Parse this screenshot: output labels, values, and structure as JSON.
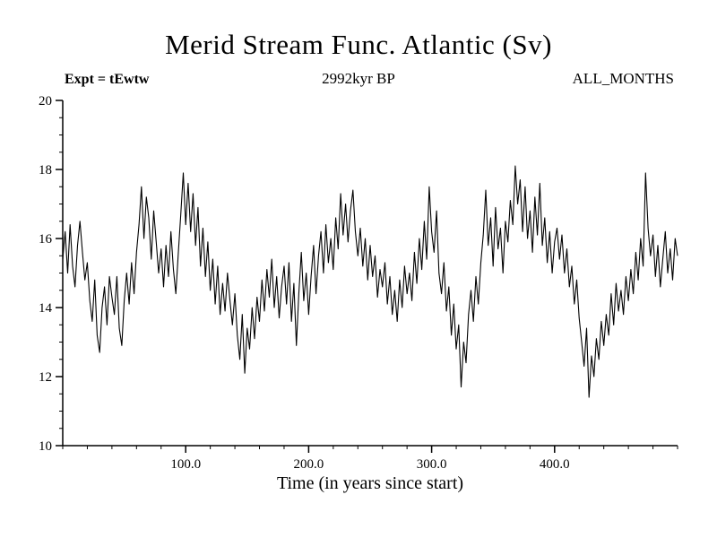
{
  "header": {
    "title": "Merid Stream Func. Atlantic (Sv)",
    "subtitle_left": "Expt = tEwtw",
    "subtitle_center": "2992kyr BP",
    "subtitle_right": "ALL_MONTHS"
  },
  "chart_data": {
    "type": "line",
    "title": "Merid Stream Func. Atlantic (Sv)",
    "xlabel": "Time (in years since start)",
    "ylabel": "",
    "xlim": [
      0,
      500
    ],
    "ylim": [
      10,
      20
    ],
    "grid": false,
    "legend": "none",
    "line_color": "#000000",
    "x_major_ticks": [
      100,
      200,
      300,
      400
    ],
    "x_tick_labels": [
      "100.0",
      "200.0",
      "300.0",
      "400.0"
    ],
    "x_minor_step": 20,
    "y_major_ticks": [
      10,
      12,
      14,
      16,
      18,
      20
    ],
    "y_tick_labels": [
      "10",
      "12",
      "14",
      "16",
      "18",
      "20"
    ],
    "y_minor_step": 0.5,
    "x_start": 0,
    "x_step": 2,
    "series": [
      {
        "name": "Merid Stream Func. Atlantic (Sv) ALL_MONTHS",
        "color": "#000000",
        "values": [
          15.4,
          16.2,
          15.0,
          16.4,
          15.2,
          14.6,
          15.8,
          16.5,
          15.6,
          14.8,
          15.3,
          14.2,
          13.6,
          14.8,
          13.2,
          12.7,
          14.0,
          14.6,
          13.5,
          14.9,
          14.3,
          13.8,
          14.9,
          13.4,
          12.9,
          14.2,
          15.0,
          14.1,
          15.3,
          14.4,
          15.6,
          16.4,
          17.5,
          16.0,
          17.2,
          16.6,
          15.4,
          16.8,
          15.9,
          15.0,
          15.7,
          14.6,
          15.8,
          14.9,
          16.2,
          15.1,
          14.4,
          15.6,
          16.7,
          17.9,
          16.4,
          17.6,
          16.2,
          17.3,
          15.8,
          16.9,
          15.2,
          16.3,
          14.9,
          15.9,
          14.5,
          15.4,
          14.1,
          15.2,
          13.8,
          14.7,
          13.9,
          15.0,
          14.2,
          13.5,
          14.4,
          13.2,
          12.5,
          13.8,
          12.1,
          13.4,
          12.8,
          14.0,
          13.1,
          14.3,
          13.6,
          14.8,
          13.9,
          15.1,
          14.3,
          15.4,
          14.0,
          14.9,
          13.7,
          14.6,
          15.2,
          14.1,
          15.3,
          13.6,
          14.7,
          12.9,
          14.4,
          15.6,
          14.2,
          15.0,
          13.8,
          14.9,
          15.8,
          14.4,
          15.5,
          16.2,
          15.0,
          16.4,
          15.3,
          16.0,
          15.1,
          16.6,
          15.7,
          17.3,
          16.1,
          17.0,
          15.9,
          16.8,
          17.4,
          16.2,
          15.5,
          16.3,
          15.2,
          16.0,
          14.8,
          15.8,
          14.9,
          15.5,
          14.3,
          15.1,
          14.6,
          15.3,
          14.1,
          14.9,
          13.8,
          14.5,
          13.6,
          14.8,
          14.0,
          15.2,
          14.4,
          15.0,
          14.2,
          15.6,
          14.7,
          16.0,
          15.1,
          16.5,
          15.4,
          17.5,
          16.2,
          15.6,
          16.8,
          15.0,
          14.4,
          15.3,
          13.9,
          14.6,
          13.2,
          14.1,
          12.8,
          13.5,
          11.7,
          13.0,
          12.4,
          13.8,
          14.5,
          13.6,
          14.9,
          14.1,
          15.3,
          16.1,
          17.4,
          15.8,
          16.6,
          15.2,
          16.9,
          15.7,
          16.3,
          15.0,
          16.5,
          15.9,
          17.1,
          16.4,
          18.1,
          17.0,
          17.7,
          16.2,
          17.5,
          16.0,
          16.8,
          15.6,
          17.2,
          16.1,
          17.6,
          15.8,
          16.6,
          15.3,
          16.2,
          15.0,
          15.9,
          16.3,
          15.4,
          16.1,
          15.0,
          15.7,
          14.6,
          15.2,
          14.1,
          14.8,
          13.7,
          13.0,
          12.3,
          13.4,
          11.4,
          12.6,
          12.0,
          13.1,
          12.5,
          13.6,
          12.9,
          13.8,
          13.2,
          14.4,
          13.5,
          14.7,
          13.9,
          14.5,
          13.8,
          14.9,
          14.2,
          15.1,
          14.4,
          15.6,
          14.8,
          16.0,
          15.2,
          17.9,
          16.3,
          15.5,
          16.1,
          14.9,
          15.8,
          14.6,
          15.4,
          16.2,
          15.0,
          15.7,
          14.8,
          16.0,
          15.5
        ]
      }
    ]
  }
}
